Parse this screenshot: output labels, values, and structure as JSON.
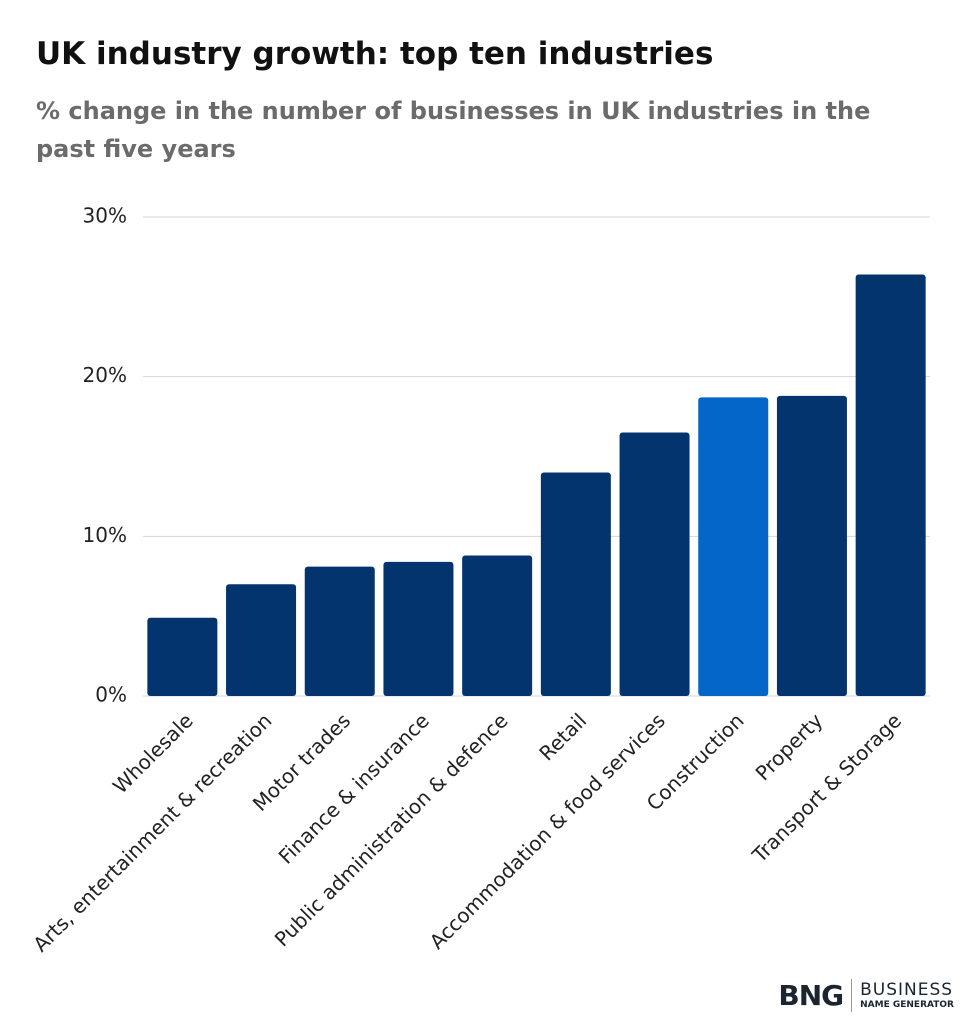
{
  "chart_data": {
    "type": "bar",
    "title": "UK industry growth: top ten industries",
    "subtitle": "% change in the number of businesses in UK industries in the past five years",
    "categories": [
      "Wholesale",
      "Arts, entertainment & recreation",
      "Motor trades",
      "Finance & insurance",
      "Public administration & defence",
      "Retail",
      "Accommodation & food services",
      "Construction",
      "Property",
      "Transport & Storage"
    ],
    "values": [
      4.9,
      7.0,
      8.1,
      8.4,
      8.8,
      14.0,
      16.5,
      18.7,
      18.8,
      26.4
    ],
    "colors": [
      "#03346e",
      "#03346e",
      "#03346e",
      "#03346e",
      "#03346e",
      "#03346e",
      "#03346e",
      "#0466c8",
      "#03346e",
      "#03346e"
    ],
    "ylim": [
      0,
      30
    ],
    "yticks": [
      {
        "value": 0,
        "label": "0%"
      },
      {
        "value": 10,
        "label": "10%"
      },
      {
        "value": 20,
        "label": "20%"
      },
      {
        "value": 30,
        "label": "30%"
      }
    ],
    "grid": true
  },
  "logo": {
    "mark": "BNG",
    "line1": "BUSINESS",
    "line2": "NAME GENERATOR"
  }
}
